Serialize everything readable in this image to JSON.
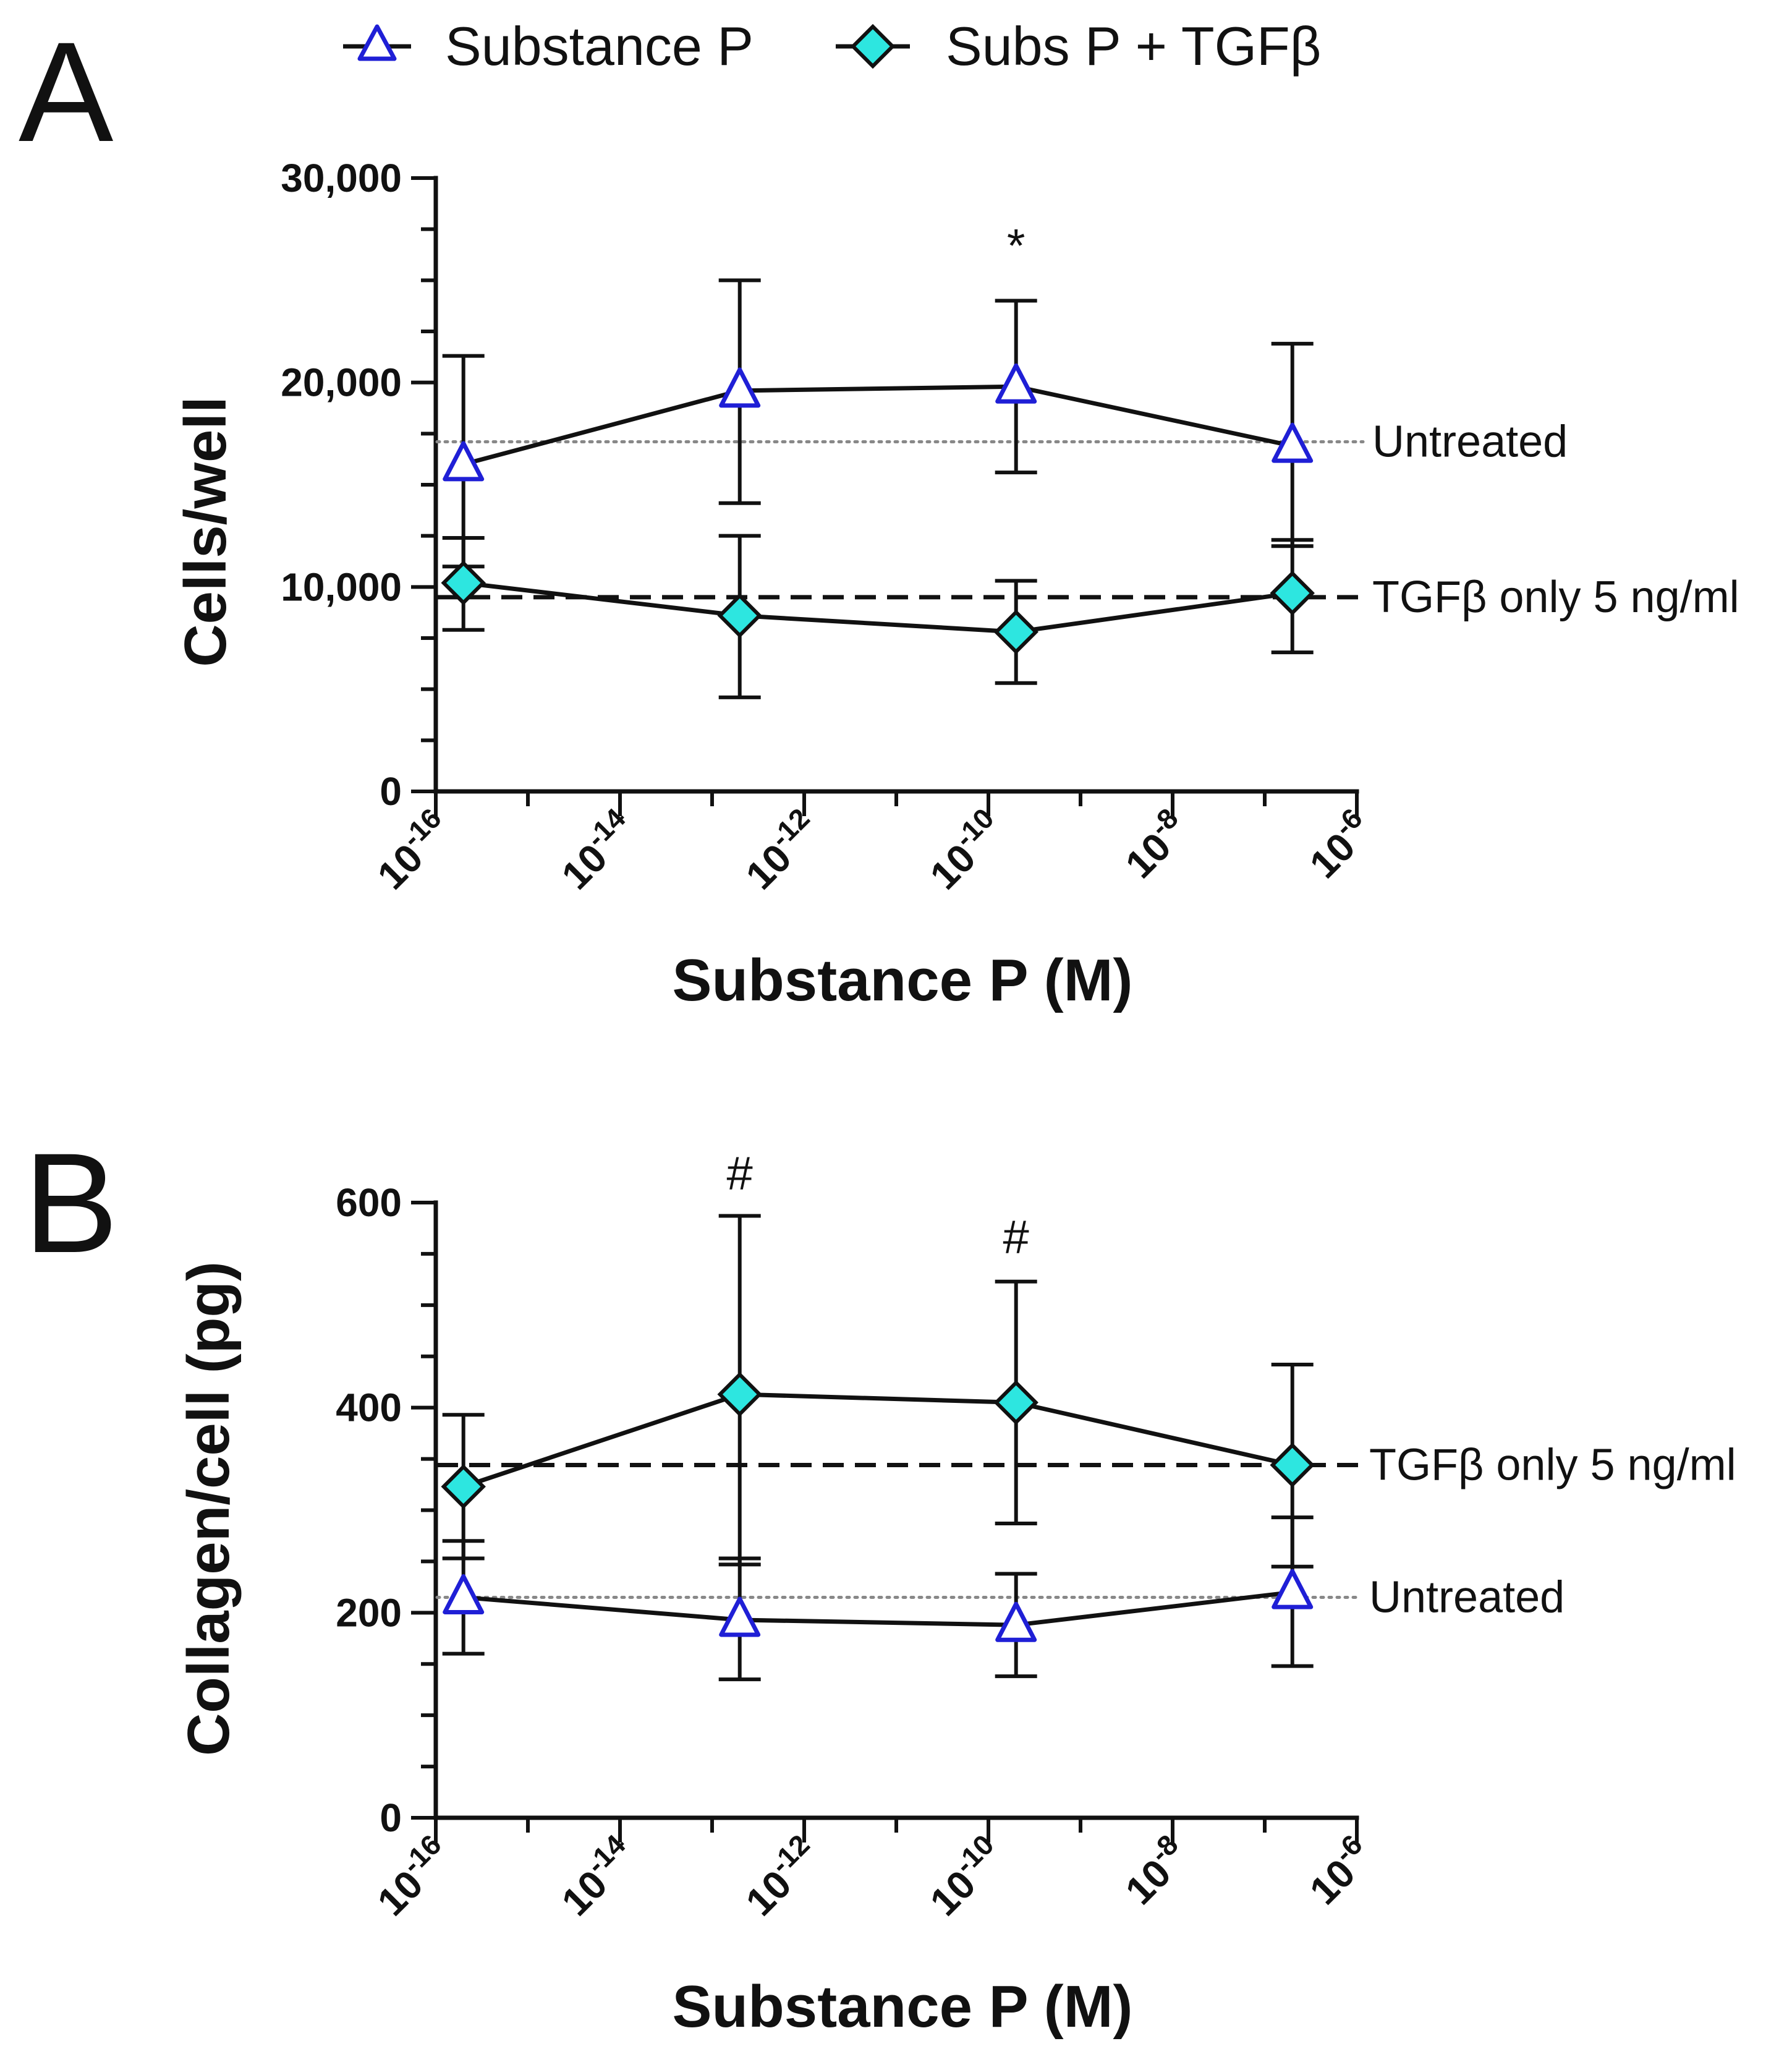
{
  "legend": {
    "items": [
      {
        "label": "Substance P",
        "marker": "triangle-icon",
        "color": "#1f1fd6"
      },
      {
        "label": "Subs P + TGFβ",
        "marker": "diamond-icon",
        "color": "#2de6e0"
      }
    ]
  },
  "chart_data": [
    {
      "type": "line",
      "panel_label": "A",
      "title": "",
      "xlabel": "Substance P (M)",
      "ylabel": "Cells/well",
      "xscale": "log",
      "xlim_exponent": [
        -16,
        -6
      ],
      "ylim": [
        0,
        30000
      ],
      "y_ticks": [
        0,
        10000,
        20000,
        30000
      ],
      "y_tick_labels": [
        "0",
        "10,000",
        "20,000",
        "30,000"
      ],
      "x_tick_exponents": [
        -16,
        -14,
        -12,
        -10,
        -8,
        -6
      ],
      "x_tick_base": "10",
      "x_log10": [
        -15.7,
        -12.7,
        -9.7,
        -6.7
      ],
      "series": [
        {
          "name": "Substance P",
          "marker": "triangle",
          "values": [
            16000,
            19600,
            19800,
            16900
          ],
          "err_upper": [
            21300,
            25000,
            24000,
            21900
          ],
          "err_lower": [
            11000,
            14100,
            15600,
            12000
          ]
        },
        {
          "name": "Subs P + TGFβ",
          "marker": "diamond",
          "values": [
            10200,
            8600,
            7800,
            9700
          ],
          "err_upper": [
            12400,
            12500,
            10300,
            12300
          ],
          "err_lower": [
            7900,
            4600,
            5300,
            6800
          ]
        }
      ],
      "reference_lines": [
        {
          "label": "Untreated",
          "value": 17100,
          "style": "dotted"
        },
        {
          "label": "TGFβ only 5 ng/ml",
          "value": 9500,
          "style": "dashed"
        }
      ],
      "annotations": [
        {
          "text": "*",
          "x_log10": -9.7,
          "y": 26500
        }
      ]
    },
    {
      "type": "line",
      "panel_label": "B",
      "title": "",
      "xlabel": "Substance P (M)",
      "ylabel": "Collagen/cell (pg)",
      "xscale": "log",
      "xlim_exponent": [
        -16,
        -6
      ],
      "ylim": [
        0,
        600
      ],
      "y_ticks": [
        0,
        200,
        400,
        600
      ],
      "y_tick_labels": [
        "0",
        "200",
        "400",
        "600"
      ],
      "x_tick_exponents": [
        -16,
        -14,
        -12,
        -10,
        -8,
        -6
      ],
      "x_tick_base": "10",
      "x_log10": [
        -15.7,
        -12.7,
        -9.7,
        -6.7
      ],
      "series": [
        {
          "name": "Substance P",
          "marker": "triangle",
          "values": [
            215,
            193,
            188,
            220
          ],
          "err_upper": [
            270,
            253,
            238,
            293
          ],
          "err_lower": [
            160,
            135,
            138,
            148
          ]
        },
        {
          "name": "Subs P + TGFβ",
          "marker": "diamond",
          "values": [
            323,
            413,
            405,
            344
          ],
          "err_upper": [
            393,
            587,
            523,
            442
          ],
          "err_lower": [
            253,
            247,
            287,
            245
          ]
        }
      ],
      "reference_lines": [
        {
          "label": "TGFβ only 5 ng/ml",
          "value": 344,
          "style": "dashed"
        },
        {
          "label": "Untreated",
          "value": 215,
          "style": "dotted"
        }
      ],
      "annotations": [
        {
          "text": "#",
          "x_log10": -12.7,
          "y": 625
        },
        {
          "text": "#",
          "x_log10": -9.7,
          "y": 563
        }
      ]
    }
  ]
}
